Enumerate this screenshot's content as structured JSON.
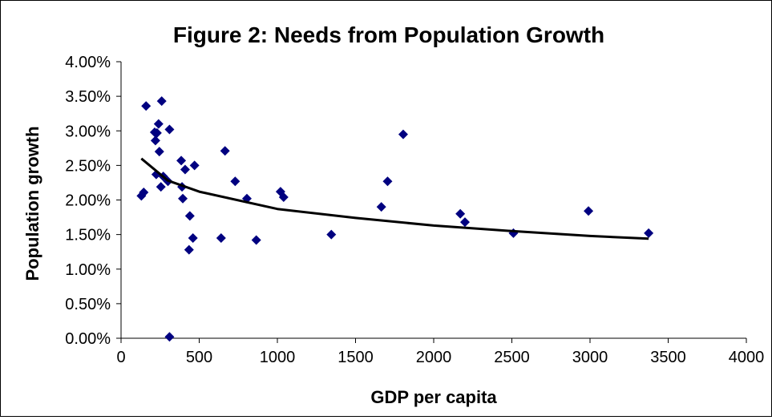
{
  "chart_data": {
    "type": "scatter",
    "title": "Figure 2: Needs from Population Growth",
    "xlabel": "GDP per capita",
    "ylabel": "Population growth",
    "xlim": [
      0,
      4000
    ],
    "ylim": [
      0,
      0.04
    ],
    "x_ticks": [
      0,
      500,
      1000,
      1500,
      2000,
      2500,
      3000,
      3500,
      4000
    ],
    "x_tick_labels": [
      "0",
      "500",
      "1000",
      "1500",
      "2000",
      "2500",
      "3000",
      "3500",
      "4000"
    ],
    "y_ticks": [
      0,
      0.005,
      0.01,
      0.015,
      0.02,
      0.025,
      0.03,
      0.035,
      0.04
    ],
    "y_tick_labels": [
      "0.00%",
      "0.50%",
      "1.00%",
      "1.50%",
      "2.00%",
      "2.50%",
      "3.00%",
      "3.50%",
      "4.00%"
    ],
    "grid": false,
    "legend": "none",
    "marker_color": "#000080",
    "trendline_color": "#000000",
    "series": [
      {
        "marker": "diamond",
        "points": [
          {
            "x": 130,
            "y": 0.0206
          },
          {
            "x": 145,
            "y": 0.0211
          },
          {
            "x": 160,
            "y": 0.0336
          },
          {
            "x": 215,
            "y": 0.0298
          },
          {
            "x": 220,
            "y": 0.0286
          },
          {
            "x": 225,
            "y": 0.0237
          },
          {
            "x": 230,
            "y": 0.0297
          },
          {
            "x": 240,
            "y": 0.031
          },
          {
            "x": 245,
            "y": 0.027
          },
          {
            "x": 255,
            "y": 0.0219
          },
          {
            "x": 260,
            "y": 0.0343
          },
          {
            "x": 270,
            "y": 0.0234
          },
          {
            "x": 300,
            "y": 0.0227
          },
          {
            "x": 310,
            "y": 0.0302
          },
          {
            "x": 310,
            "y": 0.0002
          },
          {
            "x": 385,
            "y": 0.0257
          },
          {
            "x": 390,
            "y": 0.0219
          },
          {
            "x": 395,
            "y": 0.0202
          },
          {
            "x": 410,
            "y": 0.0244
          },
          {
            "x": 435,
            "y": 0.0128
          },
          {
            "x": 440,
            "y": 0.0177
          },
          {
            "x": 460,
            "y": 0.0145
          },
          {
            "x": 470,
            "y": 0.025
          },
          {
            "x": 640,
            "y": 0.0145
          },
          {
            "x": 665,
            "y": 0.0271
          },
          {
            "x": 730,
            "y": 0.0227
          },
          {
            "x": 805,
            "y": 0.0202
          },
          {
            "x": 865,
            "y": 0.0142
          },
          {
            "x": 1020,
            "y": 0.0212
          },
          {
            "x": 1040,
            "y": 0.0204
          },
          {
            "x": 1345,
            "y": 0.015
          },
          {
            "x": 1665,
            "y": 0.019
          },
          {
            "x": 1705,
            "y": 0.0227
          },
          {
            "x": 1805,
            "y": 0.0295
          },
          {
            "x": 2170,
            "y": 0.018
          },
          {
            "x": 2200,
            "y": 0.0168
          },
          {
            "x": 2510,
            "y": 0.0152
          },
          {
            "x": 2990,
            "y": 0.0184
          },
          {
            "x": 3375,
            "y": 0.0152
          }
        ]
      }
    ],
    "trendline": {
      "type": "logarithmic",
      "x_range": [
        130,
        3375
      ],
      "points": [
        {
          "x": 130,
          "y": 0.026
        },
        {
          "x": 300,
          "y": 0.0228
        },
        {
          "x": 500,
          "y": 0.0212
        },
        {
          "x": 1000,
          "y": 0.0187
        },
        {
          "x": 1500,
          "y": 0.0174
        },
        {
          "x": 2000,
          "y": 0.0163
        },
        {
          "x": 2500,
          "y": 0.0155
        },
        {
          "x": 3000,
          "y": 0.0148
        },
        {
          "x": 3375,
          "y": 0.0144
        }
      ]
    }
  }
}
